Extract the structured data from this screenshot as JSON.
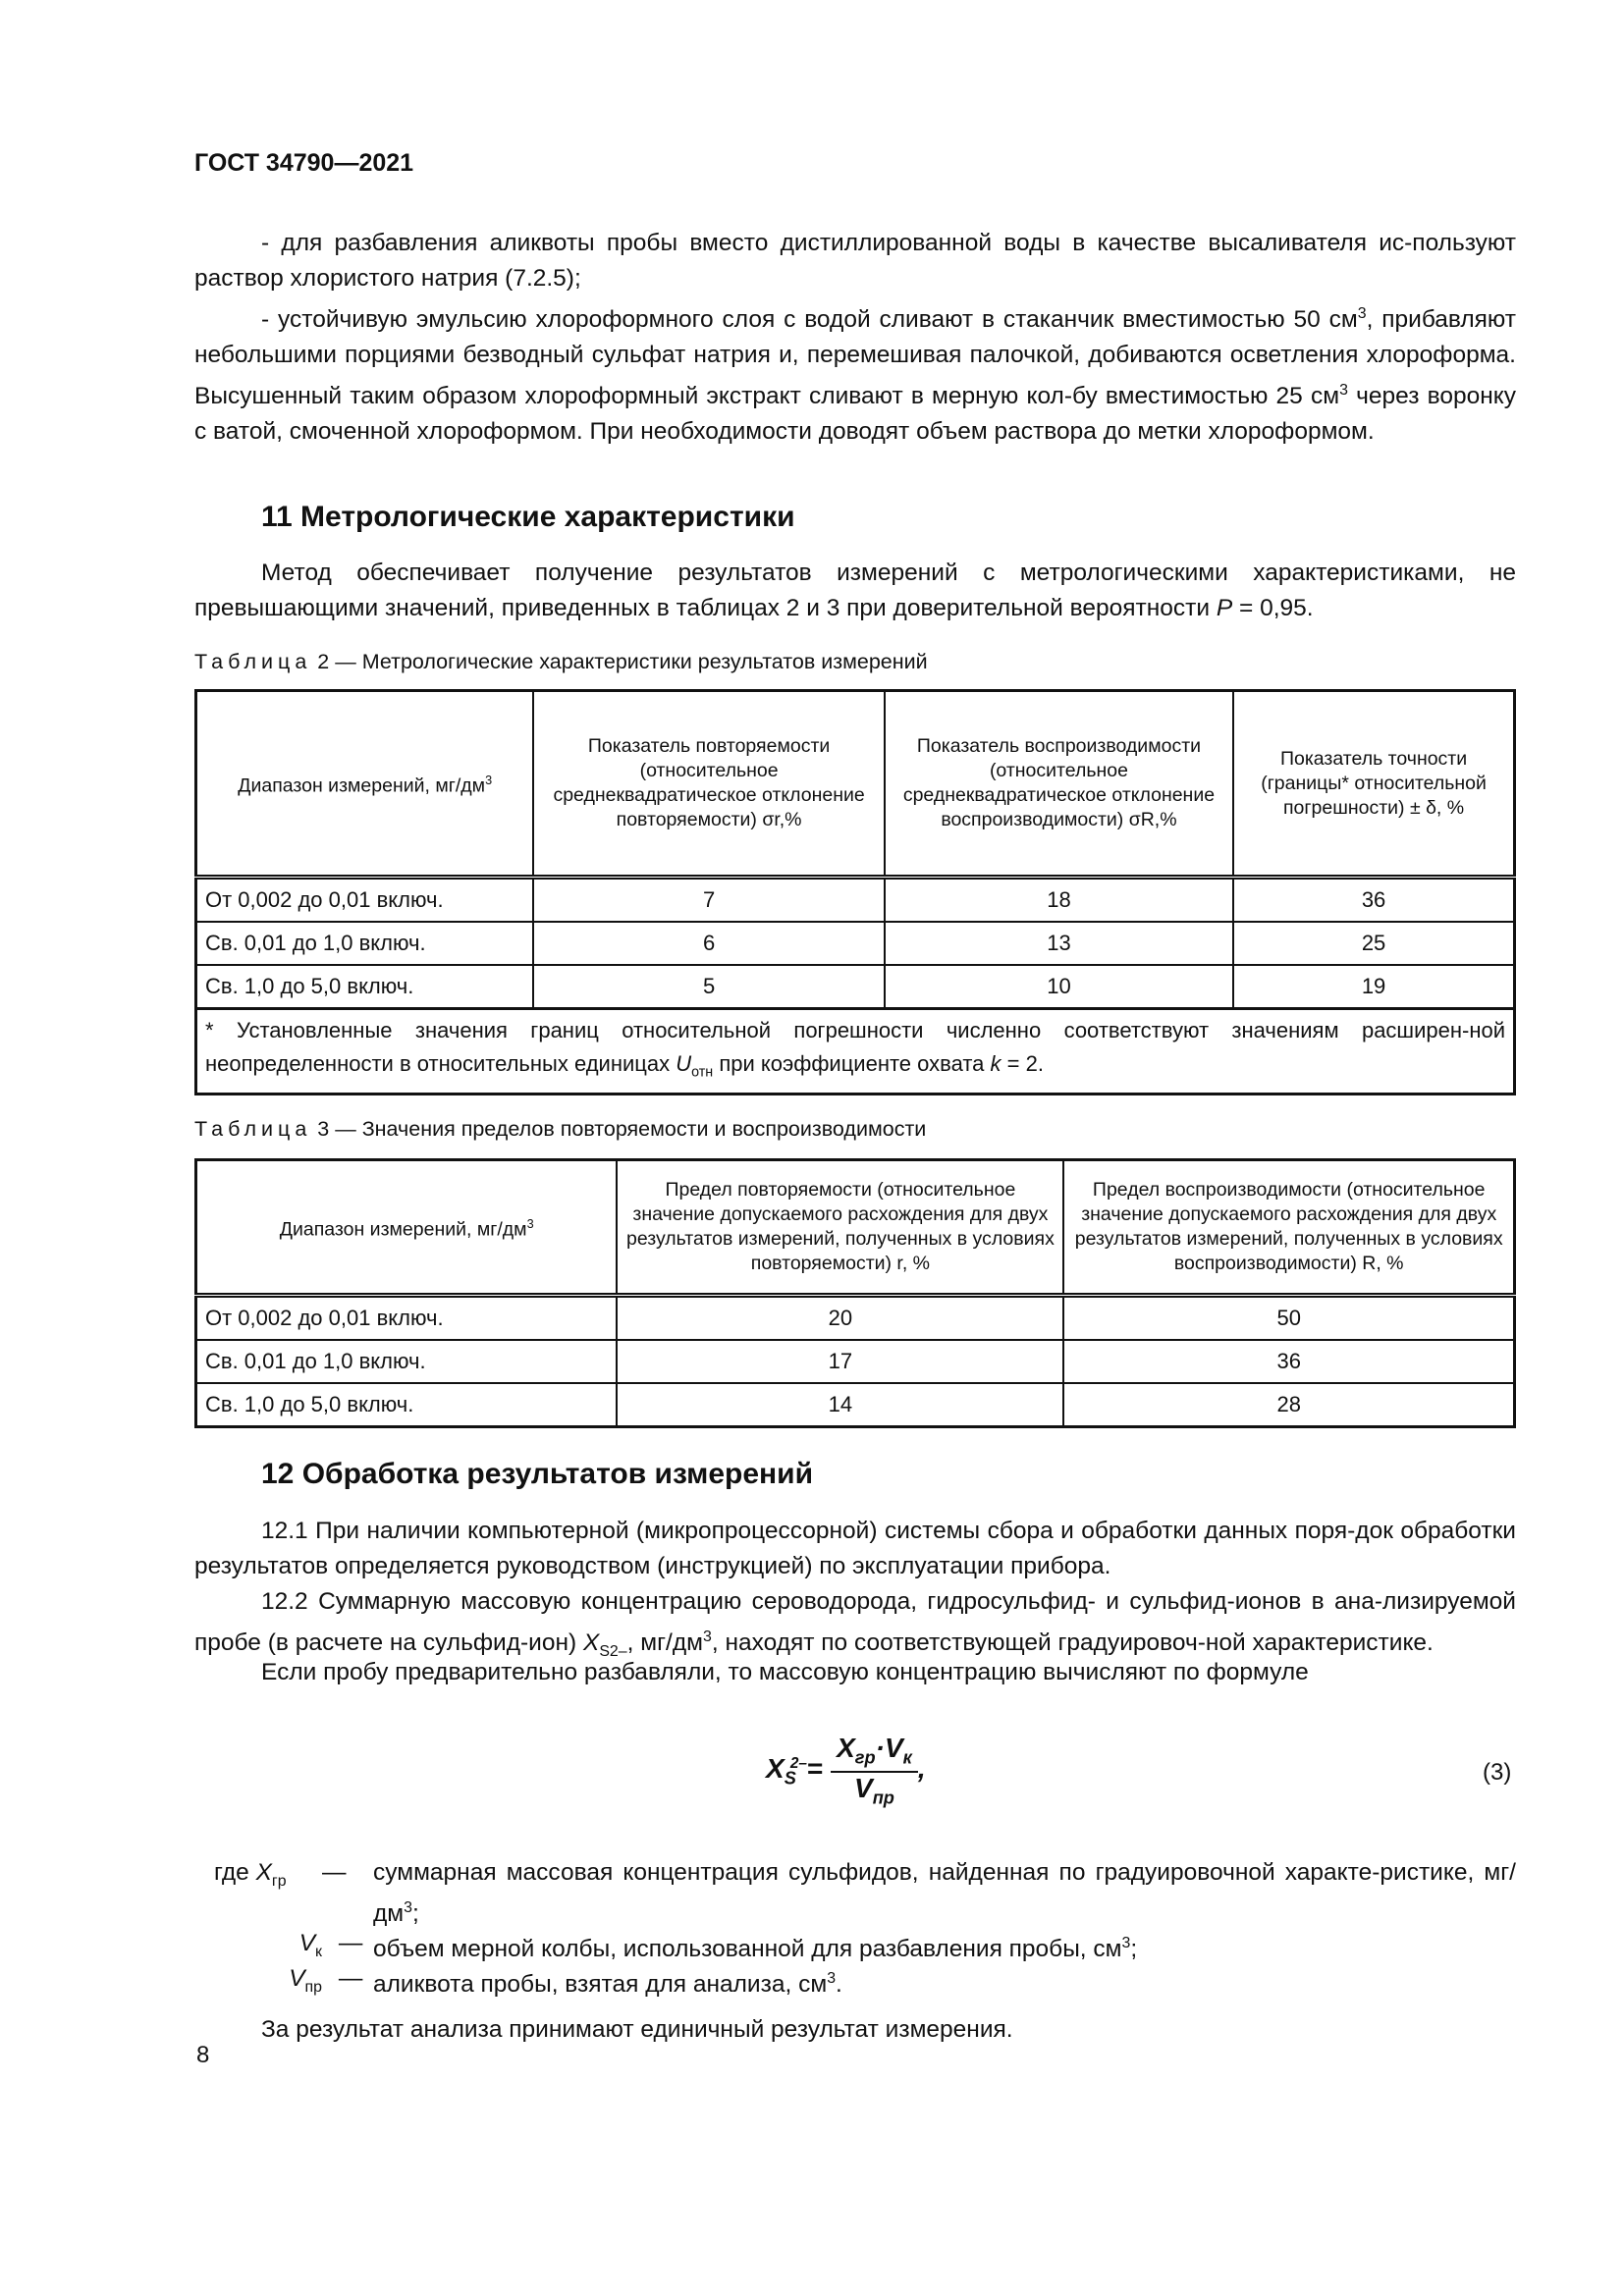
{
  "header": {
    "doc_code": "ГОСТ 34790—2021"
  },
  "intro": {
    "p1": "- для разбавления аликвоты пробы вместо дистиллированной воды в качестве высаливателя ис-пользуют раствор хлористого натрия (7.2.5);",
    "p2a": "- устойчивую эмульсию хлороформного слоя с водой сливают в стаканчик вместимостью 50 см",
    "p2b": ", прибавляют небольшими порциями безводный сульфат натрия и, перемешивая палочкой, добиваются осветления хлороформа. Высушенный таким образом хлороформный экстракт сливают в мерную кол-бу вместимостью 25 см",
    "p2c": " через воронку с ватой, смоченной хлороформом. При необходимости доводят объем раствора до метки хлороформом.",
    "sup3": "3"
  },
  "section11": {
    "title": "11 Метрологические характеристики",
    "p1a": "Метод обеспечивает получение результатов измерений с метрологическими характеристиками, не превышающими значений, приведенных в таблицах 2 и 3 при доверительной вероятности ",
    "p1_var": "P",
    "p1b": " = 0,95."
  },
  "table2": {
    "caption_word": "Таблица",
    "caption_rest": "2 — Метрологические характеристики результатов измерений",
    "headers": [
      "Диапазон измерений, мг/дм",
      "Показатель повторяемости (относительное среднеквадратическое отклонение повторяемости) σr,%",
      "Показатель воспроизводимости (относительное среднеквадратическое отклонение воспроизводимости) σR,%",
      "Показатель точности (границы* относительной погрешности) ± δ, %"
    ],
    "rows": [
      [
        "От 0,002 до 0,01 включ.",
        "7",
        "18",
        "36"
      ],
      [
        "Св. 0,01 до 1,0 включ.",
        "6",
        "13",
        "25"
      ],
      [
        "Св. 1,0 до 5,0 включ.",
        "5",
        "10",
        "19"
      ]
    ],
    "footnote_a": "* Установленные значения границ относительной погрешности численно соответствуют значениям расширен-ной неопределенности в относительных единицах ",
    "footnote_var": "U",
    "footnote_sub": "отн",
    "footnote_b": " при коэффициенте охвата ",
    "footnote_k": "k",
    "footnote_c": " = 2."
  },
  "table3": {
    "caption_word": "Таблица",
    "caption_rest": "3 — Значения пределов повторяемости и воспроизводимости",
    "headers": [
      "Диапазон измерений, мг/дм",
      "Предел повторяемости (относительное значение допускаемого расхождения для двух результатов измерений, полученных в условиях повторяемости) r, %",
      "Предел воспроизводимости (относительное значение допускаемого расхождения для двух результатов измерений, полученных в условиях воспроизводимости) R, %"
    ],
    "rows": [
      [
        "От 0,002 до 0,01 включ.",
        "20",
        "50"
      ],
      [
        "Св. 0,01 до 1,0 включ.",
        "17",
        "36"
      ],
      [
        "Св. 1,0 до 5,0 включ.",
        "14",
        "28"
      ]
    ]
  },
  "section12": {
    "title": "12 Обработка результатов измерений",
    "p1": "12.1 При наличии компьютерной (микропроцессорной) системы сбора и обработки данных поря-док обработки результатов определяется руководством (инструкцией) по эксплуатации прибора.",
    "p2a": "12.2 Суммарную массовую концентрацию сероводорода, гидросульфид- и сульфид-ионов в ана-лизируемой пробе (в расчете на сульфид-ион) ",
    "p2_var": "X",
    "p2_sub": "S2–",
    "p2b": ", мг/дм",
    "p2c": ", находят по соответствующей градуировоч-ной характеристике.",
    "p3": "Если пробу предварительно разбавляли, то массовую концентрацию вычисляют по формуле",
    "formula": {
      "lhs": "X",
      "lhs_sub": "S",
      "lhs_sup": "2–",
      "eq": "=",
      "num_x": "X",
      "num_x_sub": "гр",
      "dot": "·",
      "num_v": "V",
      "num_v_sub": "к",
      "den": "V",
      "den_sub": "пр",
      "comma": ",",
      "number": "(3)"
    },
    "where": [
      {
        "prefix": "где ",
        "var": "X",
        "sub": "гр",
        "dash": "—",
        "text": "суммарная массовая концентрация сульфидов, найденная по градуировочной характе-ристике, мг/дм",
        "sup": "3",
        "end": ";"
      },
      {
        "prefix": "",
        "var": "V",
        "sub": "к",
        "dash": "—",
        "text": "объем мерной колбы, использованной для разбавления пробы, см",
        "sup": "3",
        "end": ";"
      },
      {
        "prefix": "",
        "var": "V",
        "sub": "пр",
        "dash": "—",
        "text": "аликвота пробы, взятая для анализа, см",
        "sup": "3",
        "end": "."
      }
    ],
    "p4": "За результат анализа принимают единичный результат измерения."
  },
  "footer": {
    "page_number": "8"
  }
}
